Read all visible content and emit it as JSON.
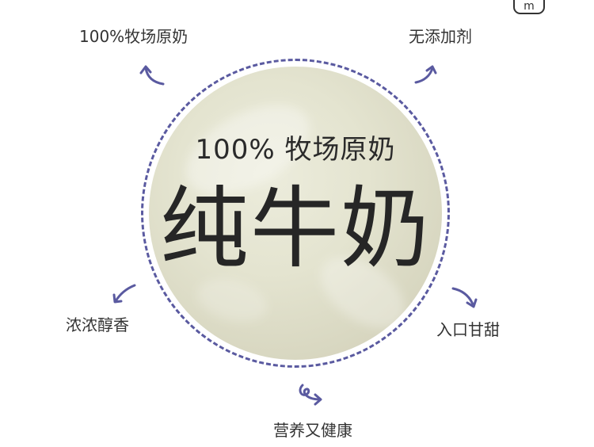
{
  "corner_tag": "m",
  "product": {
    "subtitle": "100% 牧场原奶",
    "headline": "纯牛奶"
  },
  "features": [
    {
      "label": "100%牧场原奶"
    },
    {
      "label": "无添加剂"
    },
    {
      "label": "浓浓醇香"
    },
    {
      "label": "入口甘甜"
    },
    {
      "label": "营养又健康"
    }
  ],
  "colors": {
    "accent": "#5a5aa0",
    "text": "#333333",
    "product_bg": "#e4e4d0"
  },
  "icons": [
    "curved-arrow-icon"
  ]
}
